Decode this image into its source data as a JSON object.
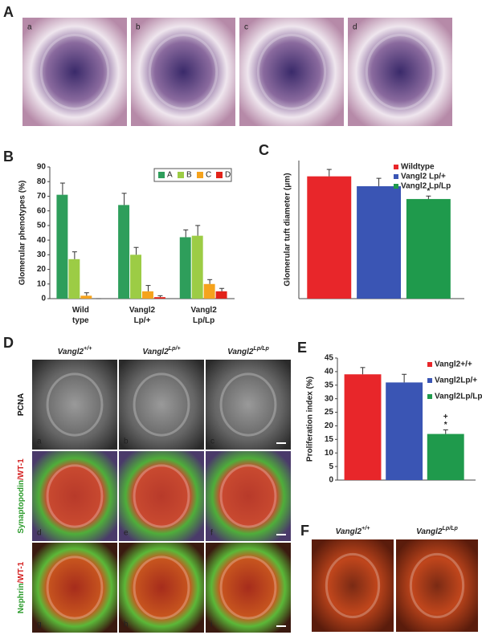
{
  "panels": {
    "A": {
      "label": "A",
      "images": [
        "a",
        "b",
        "c",
        "d"
      ]
    },
    "D": {
      "label": "D",
      "columns": [
        {
          "name": "Vangl2",
          "sup": "+/+"
        },
        {
          "name": "Vangl2",
          "sup": "Lp/+"
        },
        {
          "name": "Vangl2",
          "sup": "Lp/Lp"
        }
      ],
      "rows": [
        [
          "PCNA"
        ],
        [
          "Synaptopodin",
          "/WT-1"
        ],
        [
          "Nephrin",
          "/WT-1"
        ]
      ],
      "cells": [
        "a",
        "b",
        "c",
        "d",
        "e",
        "f",
        "g",
        "h",
        "i"
      ]
    },
    "F": {
      "label": "F",
      "columns": [
        {
          "name": "Vangl2",
          "sup": "+/+"
        },
        {
          "name": "Vangl2",
          "sup": "Lp/Lp"
        }
      ]
    }
  },
  "chart_data": [
    {
      "type": "grouped-bar",
      "label": "B",
      "ylabel": "Glomerular phenotypes (%)",
      "categories": [
        "Wild type",
        "Vangl2 Lp/+",
        "Vangl2 Lp/Lp"
      ],
      "series": [
        {
          "name": "A",
          "color": "#2e9e5b",
          "values": [
            71,
            64,
            42
          ],
          "errors": [
            8,
            8,
            5
          ]
        },
        {
          "name": "B",
          "color": "#9ccc45",
          "values": [
            27,
            30,
            43
          ],
          "errors": [
            5,
            5,
            7
          ]
        },
        {
          "name": "C",
          "color": "#f5a31d",
          "values": [
            2,
            5,
            10
          ],
          "errors": [
            2,
            4,
            3
          ]
        },
        {
          "name": "D",
          "color": "#e2231a",
          "values": [
            0,
            1,
            5
          ],
          "errors": [
            0,
            1,
            2
          ]
        }
      ],
      "ylim": [
        0,
        90
      ],
      "yticks": [
        0,
        10,
        20,
        30,
        40,
        50,
        60,
        70,
        80,
        90
      ]
    },
    {
      "type": "bar",
      "label": "C",
      "ylabel": "Glomerular tuft diameter (μm)",
      "categories": [
        "Wildtype",
        "Vangl2 Lp/+",
        "Vangl2 Lp/Lp"
      ],
      "colors": [
        "#e8262a",
        "#3a55b4",
        "#1f9a4c"
      ],
      "values": [
        62,
        57,
        50.5
      ],
      "errors": [
        3.5,
        4,
        1.5
      ],
      "annotations": [
        [],
        [],
        [
          "*"
        ]
      ],
      "ylim": [
        0,
        70
      ]
    },
    {
      "type": "bar",
      "label": "E",
      "ylabel": "Proliferation index (%)",
      "categories": [
        "Vangl2+/+",
        "Vangl2Lp/+",
        "Vangl2Lp/Lp"
      ],
      "colors": [
        "#e8262a",
        "#3a55b4",
        "#1f9a4c"
      ],
      "values": [
        39,
        36,
        17
      ],
      "errors": [
        2.5,
        3,
        1.5
      ],
      "annotations": [
        [],
        [],
        [
          "+",
          "*"
        ]
      ],
      "ylim": [
        0,
        45
      ],
      "yticks": [
        0,
        5,
        10,
        15,
        20,
        25,
        30,
        35,
        40,
        45
      ]
    }
  ]
}
